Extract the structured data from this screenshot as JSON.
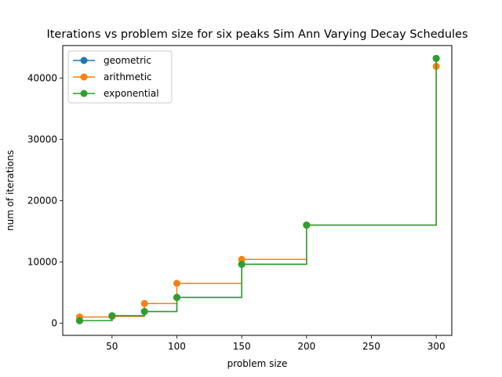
{
  "chart_data": {
    "type": "line",
    "drawstyle": "steps-post",
    "title": "Iterations vs problem size for six peaks Sim Ann Varying Decay Schedules",
    "xlabel": "problem size",
    "ylabel": "num of iterations",
    "xlim": [
      12,
      312
    ],
    "ylim": [
      -2000,
      45300
    ],
    "xticks": [
      50,
      100,
      150,
      200,
      250,
      300
    ],
    "yticks": [
      0,
      10000,
      20000,
      30000,
      40000
    ],
    "grid": false,
    "legend_position": "top-left",
    "x": [
      25,
      50,
      75,
      100,
      150,
      200,
      300
    ],
    "series": [
      {
        "name": "geometric",
        "color": "#1f77b4",
        "values": [
          400,
          1200,
          1900,
          4200,
          9600,
          16000,
          43200
        ]
      },
      {
        "name": "arithmetic",
        "color": "#ff7f0e",
        "values": [
          1000,
          1100,
          3200,
          6500,
          10400,
          16000,
          41900
        ]
      },
      {
        "name": "exponential",
        "color": "#2ca02c",
        "values": [
          400,
          1200,
          1900,
          4200,
          9600,
          16000,
          43200
        ]
      }
    ]
  }
}
